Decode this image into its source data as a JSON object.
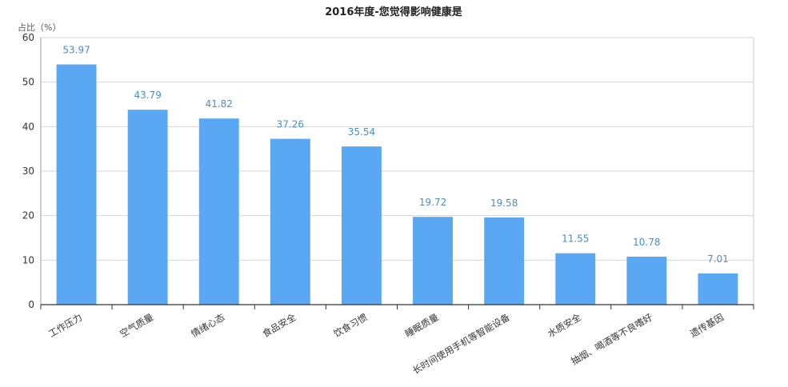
{
  "chart_data": {
    "type": "bar",
    "title": "2016年度-您觉得影响健康是",
    "ylabel": "占比（%）",
    "xlabel": "",
    "ylim": [
      0,
      60
    ],
    "yticks": [
      0,
      10,
      20,
      30,
      40,
      50,
      60
    ],
    "grid": true,
    "legend": "none",
    "categories": [
      "工作压力",
      "空气质量",
      "情绪心态",
      "食品安全",
      "饮食习惯",
      "睡眠质量",
      "长时间使用手机等智能设备",
      "水质安全",
      "抽烟、喝酒等不良嗜好",
      "遗传基因"
    ],
    "values": [
      53.97,
      43.79,
      41.82,
      37.26,
      35.54,
      19.72,
      19.58,
      11.55,
      10.78,
      7.01
    ],
    "value_labels": [
      "53.97",
      "43.79",
      "41.82",
      "37.26",
      "35.54",
      "19.72",
      "19.58",
      "11.55",
      "10.78",
      "7.01"
    ],
    "bar_color": "#5aa8f4",
    "label_color": "#4a8ec8"
  }
}
